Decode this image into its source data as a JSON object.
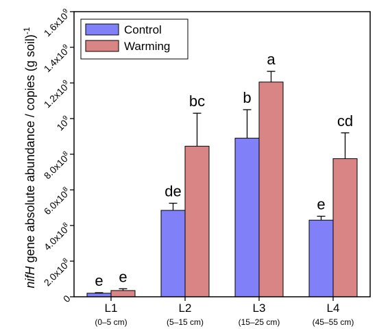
{
  "chart_data": {
    "type": "bar",
    "ylabel_italic": "nifH",
    "ylabel_rest": " gene absolute abundance / copies (g soil)",
    "ylabel_sup": "-1",
    "ylim": [
      0,
      1600000000.0
    ],
    "yticks": [
      {
        "value": 0,
        "label": "0",
        "sup": ""
      },
      {
        "value": 200000000.0,
        "label": "2.0x10",
        "sup": "8"
      },
      {
        "value": 400000000.0,
        "label": "4.0x10",
        "sup": "8"
      },
      {
        "value": 600000000.0,
        "label": "6.0x10",
        "sup": "8"
      },
      {
        "value": 800000000.0,
        "label": "8.0x10",
        "sup": "8"
      },
      {
        "value": 1000000000.0,
        "label": "10",
        "sup": "9"
      },
      {
        "value": 1200000000.0,
        "label": "1.2x10",
        "sup": "9"
      },
      {
        "value": 1400000000.0,
        "label": "1.4x10",
        "sup": "9"
      },
      {
        "value": 1600000000.0,
        "label": "1.6x10",
        "sup": "9"
      }
    ],
    "categories": [
      "L1",
      "L2",
      "L3",
      "L4"
    ],
    "category_sublabels": [
      "(0–5 cm)",
      "(5–15 cm)",
      "(15–25 cm)",
      "(45–55 cm)"
    ],
    "series": [
      {
        "name": "Control",
        "color": "#8080f8",
        "values": [
          20000000.0,
          485000000.0,
          890000000.0,
          430000000.0
        ],
        "errors": [
          3000000.0,
          40000000.0,
          160000000.0,
          22000000.0
        ],
        "letters": [
          "e",
          "de",
          "b",
          "e"
        ]
      },
      {
        "name": "Warming",
        "color": "#d98585",
        "values": [
          35000000.0,
          845000000.0,
          1205000000.0,
          775000000.0
        ],
        "errors": [
          10000000.0,
          185000000.0,
          60000000.0,
          145000000.0
        ],
        "letters": [
          "e",
          "bc",
          "a",
          "cd"
        ]
      }
    ],
    "legend_position": "top-left",
    "grid": false
  }
}
